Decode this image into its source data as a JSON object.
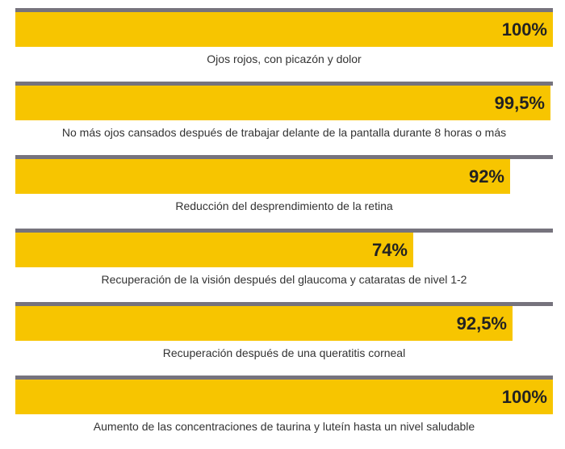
{
  "chart_data": {
    "type": "bar",
    "orientation": "horizontal",
    "ylim": [
      0,
      100
    ],
    "categories": [
      "Ojos rojos, con picazón y dolor",
      "No más ojos cansados después de trabajar delante de la pantalla durante 8 horas o más",
      "Reducción del desprendimiento de la retina",
      "Recuperación de la visión después del glaucoma y cataratas de nivel 1-2",
      "Recuperación después de una queratitis corneal",
      "Aumento de las concentraciones de taurina y luteín hasta un nivel saludable"
    ],
    "values": [
      100,
      99.5,
      92,
      74,
      92.5,
      100
    ],
    "value_labels": [
      "100%",
      "99,5%",
      "92%",
      "74%",
      "92,5%",
      "100%"
    ]
  },
  "colors": {
    "bar": "#f7c500",
    "track": "#76737d",
    "value_text": "#222222",
    "label_text": "#333333"
  }
}
